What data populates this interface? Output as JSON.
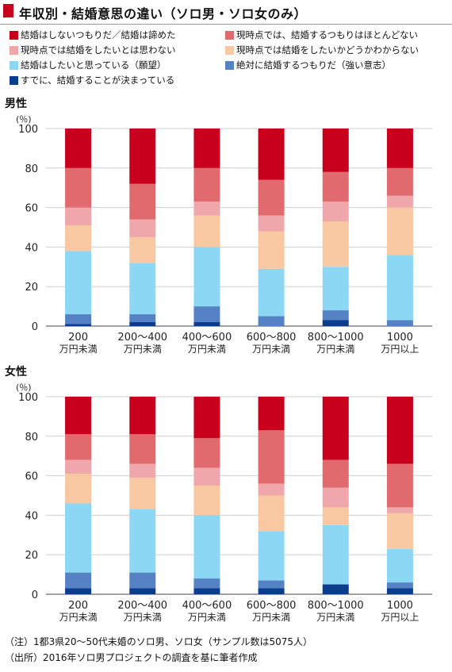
{
  "header": {
    "title": "年収別・結婚意思の違い（ソロ男・ソロ女のみ）"
  },
  "legend": [
    {
      "label": "結婚はしないつもりだ／結婚は諦めた",
      "color": "#c8001e"
    },
    {
      "label": "現時点では、結婚するつもりはほとんどない",
      "color": "#e06a6e"
    },
    {
      "label": "現時点では結婚をしたいとは思わない",
      "color": "#f0a7ab"
    },
    {
      "label": "現時点では結婚をしたいかどうかわからない",
      "color": "#f7c8a2"
    },
    {
      "label": "結婚はしたいと思っている（願望）",
      "color": "#8cd8f4"
    },
    {
      "label": "絶対に結婚するつもりだ（強い意志）",
      "color": "#5582c4"
    },
    {
      "label": "すでに、結婚することが決まっている",
      "color": "#0c3c8c"
    }
  ],
  "chart_data": [
    {
      "type": "bar",
      "stacked": true,
      "title": "男性",
      "ylabel": "(％)",
      "ylim": [
        0,
        100
      ],
      "yticks": [
        "0",
        "20",
        "40",
        "60",
        "80",
        "100"
      ],
      "categories": [
        [
          "200",
          "万円未満"
        ],
        [
          "200～400",
          "万円未満"
        ],
        [
          "400～600",
          "万円未満"
        ],
        [
          "600～800",
          "万円未満"
        ],
        [
          "800～1000",
          "万円未満"
        ],
        [
          "1000",
          "万円以上"
        ]
      ],
      "series": [
        {
          "name": "すでに、結婚することが決まっている",
          "values": [
            1,
            2,
            2,
            0,
            3,
            0
          ]
        },
        {
          "name": "絶対に結婚するつもりだ（強い意志）",
          "values": [
            5,
            4,
            8,
            5,
            5,
            3
          ]
        },
        {
          "name": "結婚はしたいと思っている（願望）",
          "values": [
            32,
            26,
            30,
            24,
            22,
            33
          ]
        },
        {
          "name": "現時点では結婚をしたいかどうかわからない",
          "values": [
            13,
            13,
            16,
            19,
            23,
            24
          ]
        },
        {
          "name": "現時点では結婚をしたいとは思わない",
          "values": [
            9,
            9,
            7,
            8,
            10,
            6
          ]
        },
        {
          "name": "現時点では、結婚するつもりはほとんどない",
          "values": [
            20,
            18,
            17,
            18,
            15,
            14
          ]
        },
        {
          "name": "結婚はしないつもりだ／結婚は諦めた",
          "values": [
            20,
            28,
            20,
            26,
            22,
            20
          ]
        }
      ]
    },
    {
      "type": "bar",
      "stacked": true,
      "title": "女性",
      "ylabel": "(％)",
      "ylim": [
        0,
        100
      ],
      "yticks": [
        "0",
        "20",
        "40",
        "60",
        "80",
        "100"
      ],
      "categories": [
        [
          "200",
          "万円未満"
        ],
        [
          "200～400",
          "万円未満"
        ],
        [
          "400～600",
          "万円未満"
        ],
        [
          "600～800",
          "万円未満"
        ],
        [
          "800～1000",
          "万円未満"
        ],
        [
          "1000",
          "万円以上"
        ]
      ],
      "series": [
        {
          "name": "すでに、結婚することが決まっている",
          "values": [
            3,
            3,
            3,
            3,
            5,
            3
          ]
        },
        {
          "name": "絶対に結婚するつもりだ（強い意志）",
          "values": [
            8,
            8,
            5,
            4,
            0,
            3
          ]
        },
        {
          "name": "結婚はしたいと思っている（願望）",
          "values": [
            35,
            32,
            32,
            25,
            30,
            17
          ]
        },
        {
          "name": "現時点では結婚をしたいかどうかわからない",
          "values": [
            15,
            16,
            15,
            18,
            9,
            18
          ]
        },
        {
          "name": "現時点では結婚をしたいとは思わない",
          "values": [
            7,
            7,
            9,
            6,
            10,
            3
          ]
        },
        {
          "name": "現時点では、結婚するつもりはほとんどない",
          "values": [
            13,
            15,
            15,
            27,
            14,
            22
          ]
        },
        {
          "name": "結婚はしないつもりだ／結婚は諦めた",
          "values": [
            19,
            19,
            21,
            17,
            32,
            34
          ]
        }
      ]
    }
  ],
  "notes": [
    "（注）1都3県20～50代未婚のソロ男、ソロ女（サンプル数は5075人）",
    "（出所）2016年ソロ男プロジェクトの調査を基に筆者作成"
  ]
}
